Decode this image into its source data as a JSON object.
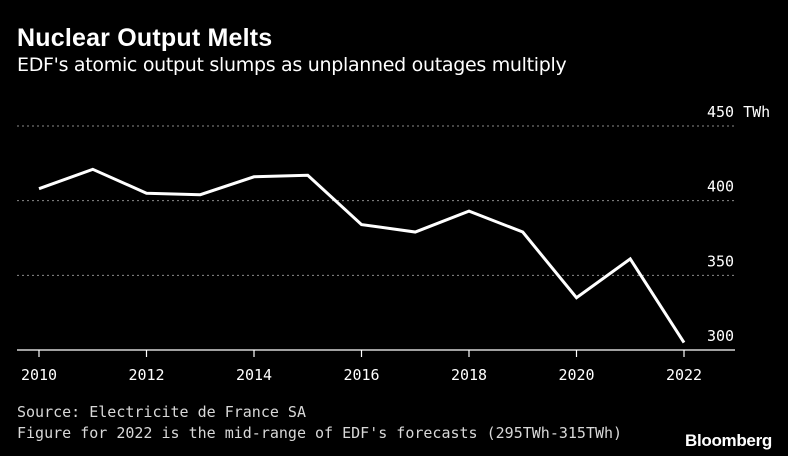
{
  "title": "Nuclear Output Melts",
  "subtitle": "EDF's atomic output slumps as unplanned outages multiply",
  "source": "Source: Electricite de France SA",
  "note": "Figure for 2022 is the mid-range of EDF's forecasts (295TWh-315TWh)",
  "brand": "Bloomberg",
  "chart_data": {
    "type": "line",
    "x": [
      2010,
      2011,
      2012,
      2013,
      2014,
      2015,
      2016,
      2017,
      2018,
      2019,
      2020,
      2021,
      2022
    ],
    "series": [
      {
        "values": [
          408,
          421,
          405,
          404,
          416,
          417,
          384,
          379,
          393,
          379,
          335,
          361,
          305
        ]
      }
    ],
    "xticks": [
      2010,
      2012,
      2014,
      2016,
      2018,
      2020,
      2022
    ],
    "xtick_labels": [
      "2010",
      "2012",
      "2014",
      "2016",
      "2018",
      "2020",
      "2022"
    ],
    "yticks": [
      300,
      350,
      400,
      450
    ],
    "ytick_labels": [
      "300",
      "350",
      "400",
      "450 TWh"
    ],
    "ylim": [
      300,
      450
    ],
    "xlim": [
      2010,
      2022
    ],
    "grid": "horizontal dotted",
    "line_color": "#ffffff",
    "background": "#000000"
  }
}
